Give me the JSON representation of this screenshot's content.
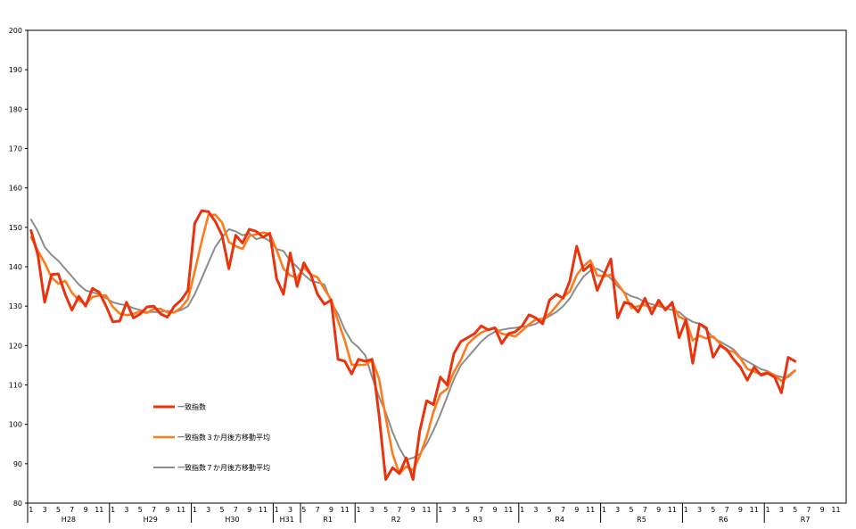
{
  "chart_data": {
    "type": "line",
    "title": "",
    "xlabel": "",
    "ylabel": "",
    "ylim": [
      80,
      200
    ],
    "yticks": [
      80,
      90,
      100,
      110,
      120,
      130,
      140,
      150,
      160,
      170,
      180,
      190,
      200
    ],
    "grid": false,
    "legend_position": "left-bottom",
    "x_month_labels": [
      "1",
      "3",
      "5",
      "7",
      "9",
      "11",
      "1",
      "3",
      "5",
      "7",
      "9",
      "11",
      "1",
      "3",
      "5",
      "7",
      "9",
      "11",
      "1",
      "3",
      "5",
      "7",
      "9",
      "11",
      "1",
      "3",
      "5",
      "7",
      "9",
      "11",
      "1",
      "3",
      "5",
      "7",
      "9",
      "11",
      "1",
      "3",
      "5",
      "7",
      "9",
      "11",
      "1",
      "3",
      "5",
      "7",
      "9",
      "11",
      "1",
      "3",
      "5",
      "7",
      "9",
      "11",
      "1",
      "3",
      "5",
      "7",
      "9",
      "11"
    ],
    "eras": [
      {
        "label": "H28",
        "start": 0,
        "end": 12
      },
      {
        "label": "H29",
        "start": 12,
        "end": 24
      },
      {
        "label": "H30",
        "start": 24,
        "end": 36
      },
      {
        "label": "H31",
        "start": 36,
        "end": 40
      },
      {
        "label": "R1",
        "start": 40,
        "end": 48
      },
      {
        "label": "R2",
        "start": 48,
        "end": 60
      },
      {
        "label": "R3",
        "start": 60,
        "end": 72
      },
      {
        "label": "R4",
        "start": 72,
        "end": 84
      },
      {
        "label": "R5",
        "start": 84,
        "end": 96
      },
      {
        "label": "R6",
        "start": 96,
        "end": 108
      },
      {
        "label": "R7",
        "start": 108,
        "end": 120
      }
    ],
    "series": [
      {
        "name": "一致指数",
        "color": "#e8340e",
        "values": [
          149.2,
          143.0,
          131.0,
          138.0,
          138.2,
          133.0,
          129.0,
          132.5,
          130.0,
          134.5,
          133.5,
          130.0,
          126.0,
          126.2,
          131.0,
          127.0,
          128.0,
          129.8,
          130.0,
          128.0,
          127.2,
          130.0,
          131.5,
          134.0,
          151.0,
          154.2,
          154.0,
          151.5,
          148.0,
          139.5,
          148.0,
          146.0,
          149.5,
          149.0,
          147.5,
          148.5,
          137.0,
          133.0,
          143.5,
          135.0,
          141.0,
          138.0,
          133.0,
          130.5,
          131.5,
          116.5,
          116.0,
          112.8,
          116.5,
          116.0,
          116.5,
          102.5,
          86.0,
          89.0,
          87.5,
          91.5,
          86.0,
          98.5,
          106.0,
          105.0,
          112.0,
          110.0,
          118.0,
          121.0,
          122.0,
          123.0,
          125.0,
          124.0,
          124.5,
          120.5,
          123.0,
          123.5,
          125.0,
          127.8,
          127.0,
          125.5,
          131.5,
          133.0,
          132.0,
          136.5,
          145.2,
          139.0,
          140.5,
          134.0,
          138.0,
          142.0,
          127.0,
          131.0,
          130.5,
          128.5,
          132.0,
          128.0,
          131.5,
          129.0,
          131.0,
          122.0,
          126.5,
          115.5,
          125.5,
          124.5,
          117.0,
          120.0,
          119.0,
          116.5,
          114.5,
          111.2,
          114.5,
          112.5,
          113.0,
          112.0,
          108.0,
          117.0,
          116.0
        ]
      },
      {
        "name": "一致指数３か月後方移動平均",
        "color": "#ff7a1a",
        "values": [
          147.5,
          144.0,
          141.0,
          137.3,
          135.7,
          136.4,
          133.4,
          131.5,
          130.5,
          132.3,
          132.7,
          132.7,
          129.8,
          128.1,
          127.7,
          128.0,
          128.7,
          128.3,
          129.3,
          129.3,
          128.4,
          128.4,
          129.6,
          131.8,
          138.8,
          146.4,
          153.1,
          153.2,
          151.2,
          146.3,
          145.2,
          144.5,
          147.8,
          148.2,
          148.7,
          148.3,
          144.3,
          139.5,
          137.8,
          137.2,
          139.8,
          138.0,
          137.3,
          134.3,
          131.7,
          126.2,
          121.3,
          115.1,
          115.1,
          115.1,
          116.3,
          111.7,
          101.7,
          92.5,
          87.5,
          89.3,
          88.3,
          92.0,
          96.8,
          103.2,
          107.7,
          109.0,
          113.3,
          116.3,
          120.3,
          122.0,
          123.3,
          124.0,
          124.5,
          123.0,
          122.7,
          122.3,
          123.8,
          125.4,
          126.6,
          126.8,
          128.0,
          130.0,
          132.2,
          133.8,
          137.9,
          140.2,
          141.6,
          137.8,
          137.5,
          138.0,
          135.7,
          133.3,
          129.5,
          130.0,
          130.3,
          129.5,
          130.5,
          129.5,
          130.5,
          127.3,
          126.5,
          121.3,
          122.5,
          121.8,
          122.3,
          120.5,
          118.7,
          118.5,
          116.7,
          114.1,
          113.4,
          112.7,
          113.3,
          112.5,
          111.0,
          112.3,
          113.7
        ]
      },
      {
        "name": "一致指数７か月後方移動平均",
        "color": "#8c8c8c",
        "values": [
          152.0,
          149.0,
          145.0,
          143.0,
          141.5,
          139.5,
          137.5,
          135.5,
          134.0,
          133.5,
          133.0,
          132.0,
          131.0,
          130.5,
          130.2,
          129.5,
          129.0,
          128.5,
          128.5,
          128.5,
          128.8,
          128.5,
          129.0,
          130.0,
          133.0,
          137.0,
          141.0,
          145.0,
          147.5,
          149.5,
          149.0,
          148.0,
          148.5,
          147.0,
          147.5,
          146.5,
          144.5,
          144.0,
          141.5,
          140.0,
          138.0,
          136.5,
          136.0,
          135.5,
          131.0,
          128.0,
          124.0,
          121.0,
          119.5,
          117.5,
          112.0,
          107.0,
          103.0,
          98.0,
          94.0,
          91.0,
          91.5,
          92.5,
          95.0,
          98.5,
          102.5,
          107.0,
          111.5,
          115.0,
          117.0,
          119.0,
          121.0,
          122.5,
          123.5,
          124.0,
          124.3,
          124.5,
          124.8,
          125.0,
          125.5,
          126.5,
          127.5,
          128.5,
          130.0,
          132.0,
          135.0,
          137.5,
          139.0,
          139.5,
          138.5,
          137.0,
          135.0,
          133.5,
          132.5,
          132.0,
          131.0,
          130.5,
          130.0,
          129.5,
          129.0,
          128.5,
          127.0,
          126.0,
          125.5,
          124.0,
          122.0,
          121.0,
          120.0,
          119.0,
          117.0,
          116.0,
          115.0,
          114.0,
          113.5,
          112.5,
          112.0,
          112.0,
          113.5
        ]
      }
    ]
  }
}
